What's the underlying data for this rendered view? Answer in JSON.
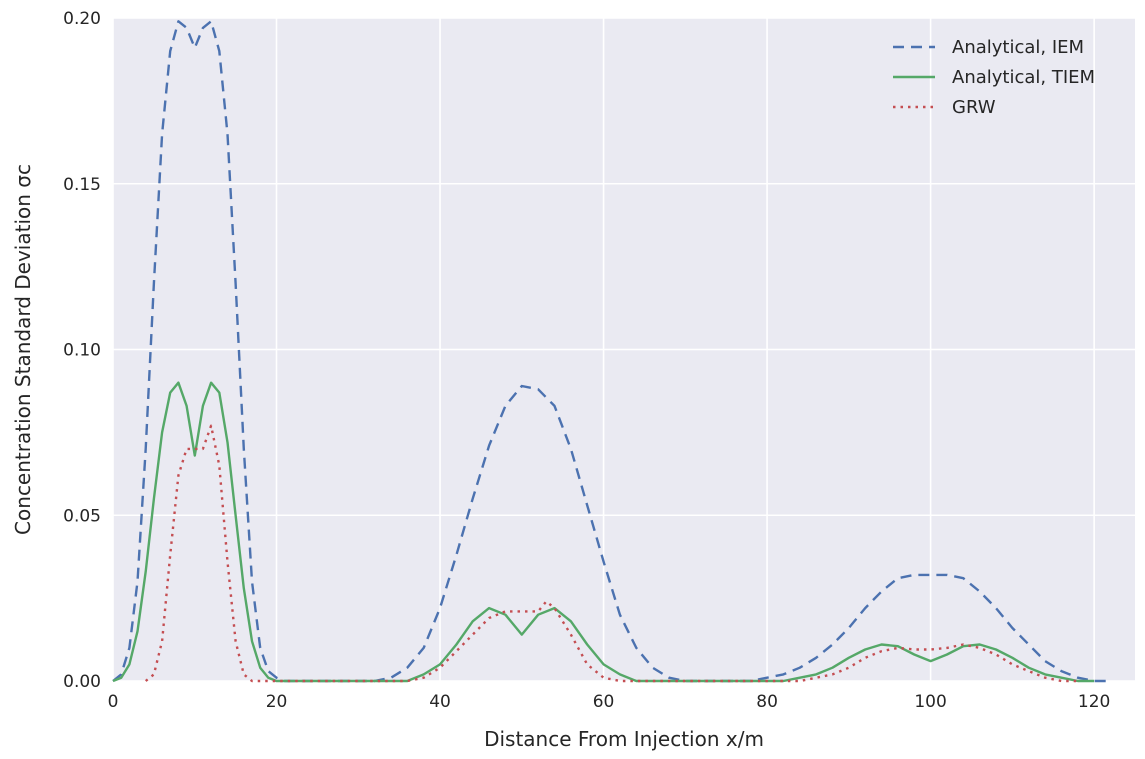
{
  "chart_data": {
    "type": "line",
    "title": "",
    "xlabel": "Distance From Injection x/m",
    "ylabel": "Concentration Standard Deviation σc",
    "xlim": [
      0,
      125
    ],
    "ylim": [
      0,
      0.2
    ],
    "xticks": [
      0,
      20,
      40,
      60,
      80,
      100,
      120
    ],
    "yticks": [
      0.0,
      0.05,
      0.1,
      0.15,
      0.2
    ],
    "xtick_labels": [
      "0",
      "20",
      "40",
      "60",
      "80",
      "100",
      "120"
    ],
    "ytick_labels": [
      "0.00",
      "0.05",
      "0.10",
      "0.15",
      "0.20"
    ],
    "grid": true,
    "legend_position": "top-right",
    "colors": {
      "background": "#eaeaf2",
      "grid": "#ffffff",
      "iem": "#4c72b0",
      "tiem": "#55a868",
      "grw": "#c44e52"
    },
    "series": [
      {
        "name": "Analytical, IEM",
        "style": "dashed",
        "color": "#4c72b0",
        "points": [
          [
            0,
            0.0
          ],
          [
            1,
            0.002
          ],
          [
            2,
            0.01
          ],
          [
            3,
            0.03
          ],
          [
            4,
            0.07
          ],
          [
            5,
            0.12
          ],
          [
            6,
            0.165
          ],
          [
            7,
            0.19
          ],
          [
            8,
            0.199
          ],
          [
            9,
            0.197
          ],
          [
            10,
            0.191
          ],
          [
            11,
            0.197
          ],
          [
            12,
            0.199
          ],
          [
            13,
            0.19
          ],
          [
            14,
            0.165
          ],
          [
            15,
            0.12
          ],
          [
            16,
            0.07
          ],
          [
            17,
            0.03
          ],
          [
            18,
            0.01
          ],
          [
            19,
            0.003
          ],
          [
            20,
            0.001
          ],
          [
            21,
            0.0
          ],
          [
            22,
            0.0
          ],
          [
            29,
            0.0
          ],
          [
            32,
            0.0
          ],
          [
            34,
            0.001
          ],
          [
            36,
            0.004
          ],
          [
            38,
            0.01
          ],
          [
            40,
            0.022
          ],
          [
            42,
            0.038
          ],
          [
            44,
            0.055
          ],
          [
            46,
            0.071
          ],
          [
            48,
            0.083
          ],
          [
            50,
            0.089
          ],
          [
            52,
            0.088
          ],
          [
            54,
            0.083
          ],
          [
            56,
            0.07
          ],
          [
            58,
            0.053
          ],
          [
            60,
            0.036
          ],
          [
            62,
            0.02
          ],
          [
            64,
            0.01
          ],
          [
            66,
            0.004
          ],
          [
            68,
            0.001
          ],
          [
            70,
            0.0
          ],
          [
            72,
            0.0
          ],
          [
            78,
            0.0
          ],
          [
            80,
            0.001
          ],
          [
            82,
            0.002
          ],
          [
            84,
            0.004
          ],
          [
            86,
            0.007
          ],
          [
            88,
            0.011
          ],
          [
            90,
            0.016
          ],
          [
            92,
            0.022
          ],
          [
            94,
            0.027
          ],
          [
            96,
            0.031
          ],
          [
            98,
            0.032
          ],
          [
            100,
            0.032
          ],
          [
            102,
            0.032
          ],
          [
            104,
            0.031
          ],
          [
            106,
            0.027
          ],
          [
            108,
            0.022
          ],
          [
            110,
            0.016
          ],
          [
            112,
            0.011
          ],
          [
            114,
            0.006
          ],
          [
            116,
            0.003
          ],
          [
            118,
            0.001
          ],
          [
            120,
            0.0
          ],
          [
            122,
            0.0
          ]
        ]
      },
      {
        "name": "Analytical, TIEM",
        "style": "solid",
        "color": "#55a868",
        "points": [
          [
            0,
            0.0
          ],
          [
            1,
            0.001
          ],
          [
            2,
            0.005
          ],
          [
            3,
            0.015
          ],
          [
            4,
            0.033
          ],
          [
            5,
            0.055
          ],
          [
            6,
            0.075
          ],
          [
            7,
            0.087
          ],
          [
            8,
            0.09
          ],
          [
            9,
            0.083
          ],
          [
            10,
            0.068
          ],
          [
            11,
            0.083
          ],
          [
            12,
            0.09
          ],
          [
            13,
            0.087
          ],
          [
            14,
            0.072
          ],
          [
            15,
            0.05
          ],
          [
            16,
            0.028
          ],
          [
            17,
            0.012
          ],
          [
            18,
            0.004
          ],
          [
            19,
            0.001
          ],
          [
            20,
            0.0
          ],
          [
            21,
            0.0
          ],
          [
            34,
            0.0
          ],
          [
            36,
            0.0
          ],
          [
            38,
            0.002
          ],
          [
            40,
            0.005
          ],
          [
            42,
            0.011
          ],
          [
            44,
            0.018
          ],
          [
            46,
            0.022
          ],
          [
            48,
            0.02
          ],
          [
            50,
            0.014
          ],
          [
            52,
            0.02
          ],
          [
            54,
            0.022
          ],
          [
            56,
            0.018
          ],
          [
            58,
            0.011
          ],
          [
            60,
            0.005
          ],
          [
            62,
            0.002
          ],
          [
            64,
            0.0
          ],
          [
            66,
            0.0
          ],
          [
            80,
            0.0
          ],
          [
            82,
            0.0
          ],
          [
            84,
            0.001
          ],
          [
            86,
            0.002
          ],
          [
            88,
            0.004
          ],
          [
            90,
            0.007
          ],
          [
            92,
            0.0095
          ],
          [
            94,
            0.011
          ],
          [
            96,
            0.0105
          ],
          [
            98,
            0.008
          ],
          [
            100,
            0.006
          ],
          [
            102,
            0.008
          ],
          [
            104,
            0.0105
          ],
          [
            106,
            0.011
          ],
          [
            108,
            0.0095
          ],
          [
            110,
            0.007
          ],
          [
            112,
            0.004
          ],
          [
            114,
            0.002
          ],
          [
            116,
            0.001
          ],
          [
            118,
            0.0
          ],
          [
            120,
            0.0
          ]
        ]
      },
      {
        "name": "GRW",
        "style": "dotted",
        "color": "#c44e52",
        "points": [
          [
            4,
            0.0
          ],
          [
            5,
            0.002
          ],
          [
            6,
            0.012
          ],
          [
            7,
            0.038
          ],
          [
            8,
            0.062
          ],
          [
            9,
            0.07
          ],
          [
            10,
            0.07
          ],
          [
            11,
            0.07
          ],
          [
            12,
            0.077
          ],
          [
            13,
            0.065
          ],
          [
            14,
            0.036
          ],
          [
            15,
            0.012
          ],
          [
            16,
            0.002
          ],
          [
            17,
            0.0
          ],
          [
            36,
            0.0
          ],
          [
            38,
            0.001
          ],
          [
            40,
            0.004
          ],
          [
            42,
            0.009
          ],
          [
            44,
            0.014
          ],
          [
            46,
            0.019
          ],
          [
            48,
            0.021
          ],
          [
            50,
            0.021
          ],
          [
            52,
            0.021
          ],
          [
            53,
            0.024
          ],
          [
            54,
            0.022
          ],
          [
            56,
            0.014
          ],
          [
            58,
            0.005
          ],
          [
            60,
            0.001
          ],
          [
            62,
            0.0
          ],
          [
            82,
            0.0
          ],
          [
            84,
            0.0
          ],
          [
            86,
            0.001
          ],
          [
            88,
            0.002
          ],
          [
            90,
            0.004
          ],
          [
            92,
            0.007
          ],
          [
            94,
            0.009
          ],
          [
            96,
            0.01
          ],
          [
            98,
            0.0095
          ],
          [
            100,
            0.0095
          ],
          [
            102,
            0.01
          ],
          [
            104,
            0.011
          ],
          [
            106,
            0.01
          ],
          [
            108,
            0.008
          ],
          [
            110,
            0.005
          ],
          [
            112,
            0.003
          ],
          [
            114,
            0.001
          ],
          [
            116,
            0.0
          ],
          [
            118,
            0.0
          ]
        ]
      }
    ]
  }
}
